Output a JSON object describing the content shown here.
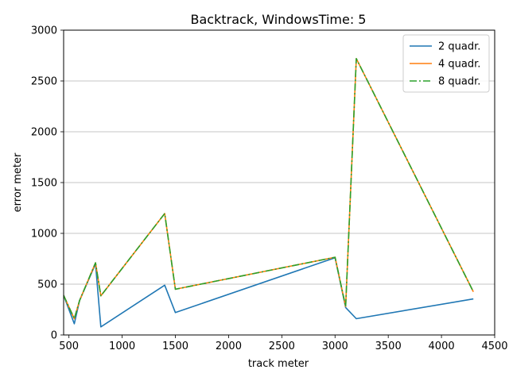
{
  "chart_data": {
    "type": "line",
    "title": "Backtrack, WindowsTime: 5",
    "xlabel": "track meter",
    "ylabel": "error meter",
    "xlim": [
      450,
      4500
    ],
    "ylim": [
      0,
      3000
    ],
    "xticks": [
      500,
      1000,
      1500,
      2000,
      2500,
      3000,
      3500,
      4000,
      4500
    ],
    "yticks": [
      0,
      500,
      1000,
      1500,
      2000,
      2500,
      3000
    ],
    "grid": "horizontal",
    "legend_position": "top-right",
    "series": [
      {
        "name": "2 quadr.",
        "color": "#1f77b4",
        "style": "solid",
        "x": [
          450,
          550,
          600,
          750,
          800,
          1400,
          1500,
          3000,
          3100,
          3200,
          4300
        ],
        "y": [
          390,
          110,
          340,
          700,
          80,
          490,
          220,
          760,
          270,
          160,
          355
        ]
      },
      {
        "name": "4 quadr.",
        "color": "#ff7f0e",
        "style": "solid",
        "x": [
          450,
          550,
          600,
          750,
          800,
          1400,
          1500,
          3000,
          3100,
          3200,
          4300
        ],
        "y": [
          390,
          160,
          340,
          710,
          385,
          1195,
          450,
          765,
          280,
          2720,
          425
        ]
      },
      {
        "name": "8 quadr.",
        "color": "#2ca02c",
        "style": "dashdot",
        "x": [
          450,
          550,
          600,
          750,
          800,
          1400,
          1500,
          3000,
          3100,
          3200,
          4300
        ],
        "y": [
          390,
          160,
          340,
          710,
          385,
          1195,
          450,
          765,
          280,
          2720,
          425
        ]
      }
    ]
  }
}
